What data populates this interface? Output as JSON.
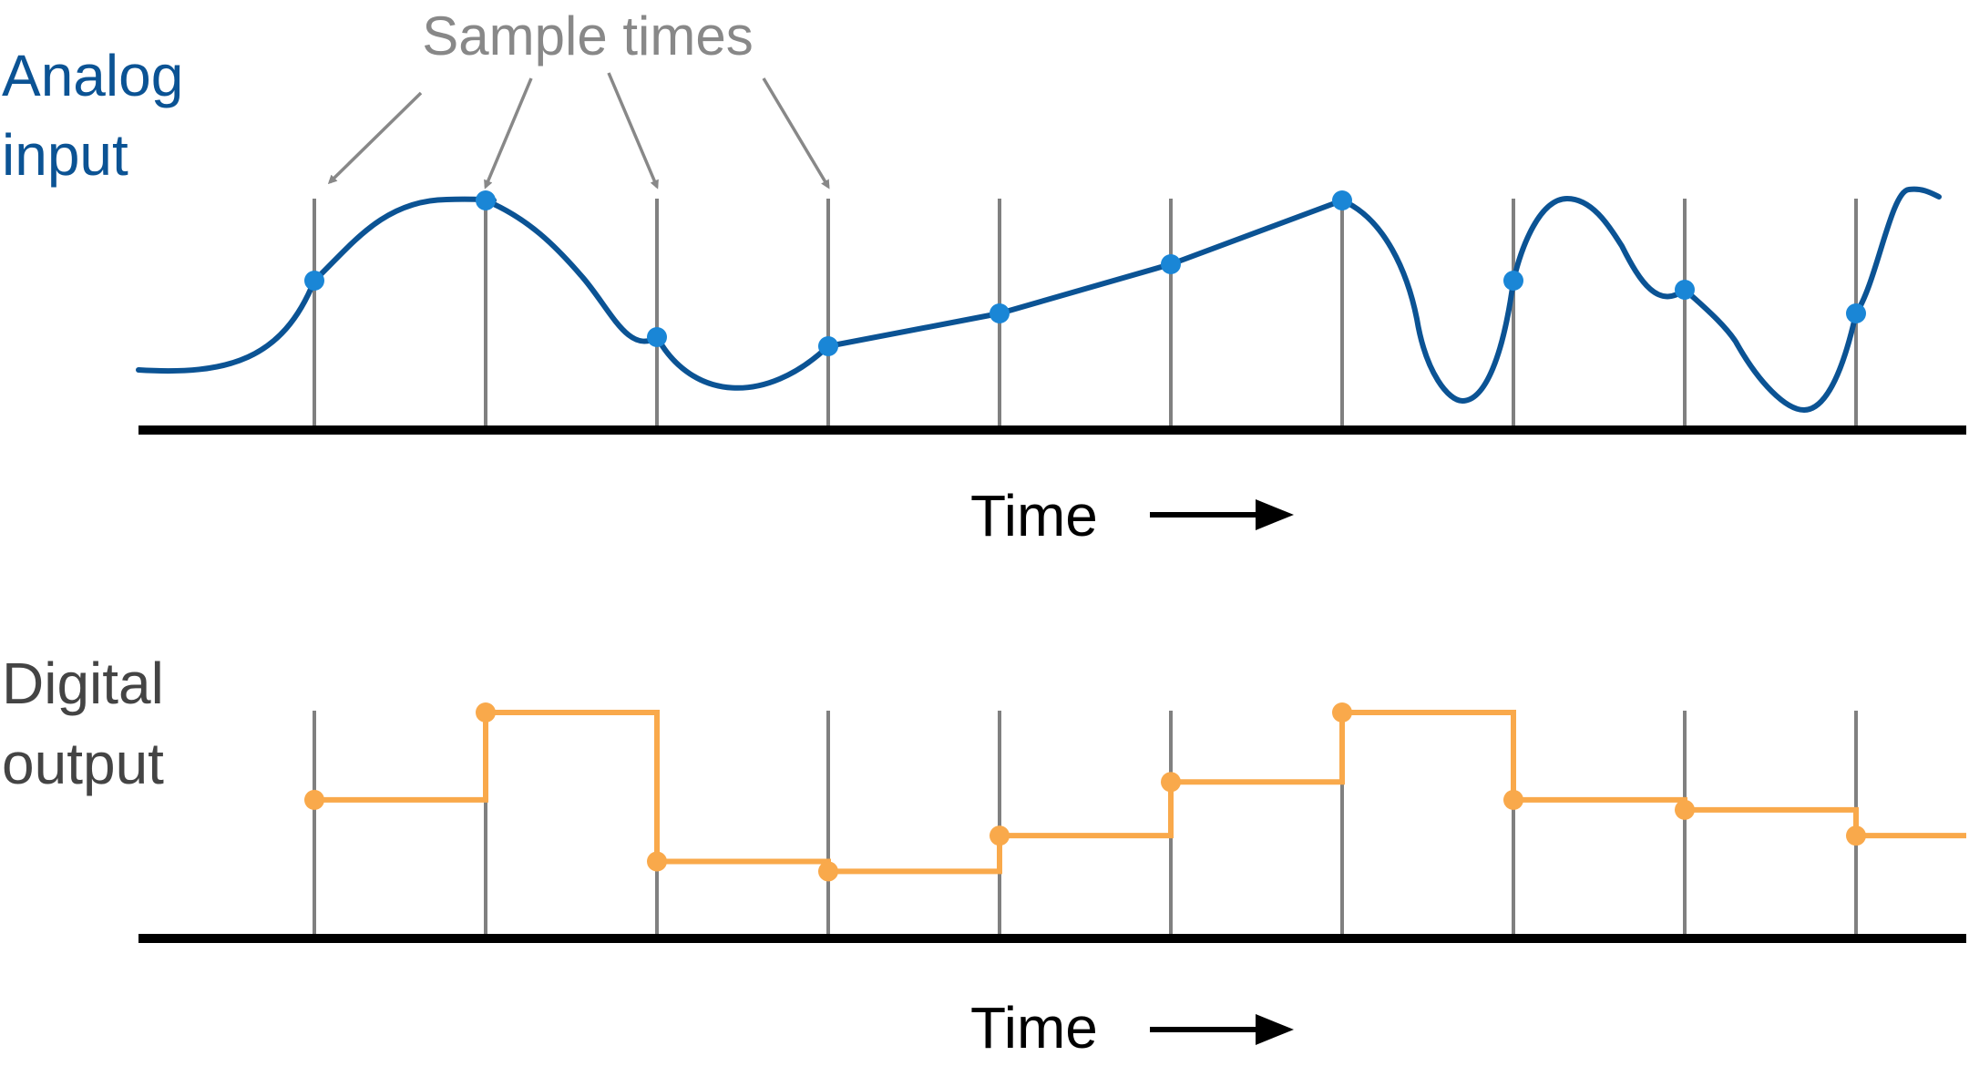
{
  "labels": {
    "analog_input": [
      "Analog",
      "input"
    ],
    "digital_output": [
      "Digital",
      "output"
    ],
    "sample_times": "Sample times",
    "time_top": "Time",
    "time_bottom": "Time"
  },
  "colors": {
    "analog_curve": "#0b5394",
    "analog_points": "#1a86d6",
    "analog_label": "#0b5394",
    "digital": "#f9a94b",
    "digital_label": "#444444",
    "sample_lines": "#808080",
    "annotation": "#888888",
    "baseline": "#000000"
  },
  "diagram": {
    "sample_count": 10,
    "analog_samples": [
      0.56,
      1.0,
      0.25,
      0.2,
      0.38,
      0.65,
      1.0,
      0.56,
      0.51,
      0.38
    ],
    "digital_levels": [
      0.56,
      1.0,
      0.25,
      0.2,
      0.38,
      0.65,
      1.0,
      0.56,
      0.51,
      0.38
    ],
    "annotated_sample_indices": [
      0,
      1,
      2,
      3
    ]
  }
}
